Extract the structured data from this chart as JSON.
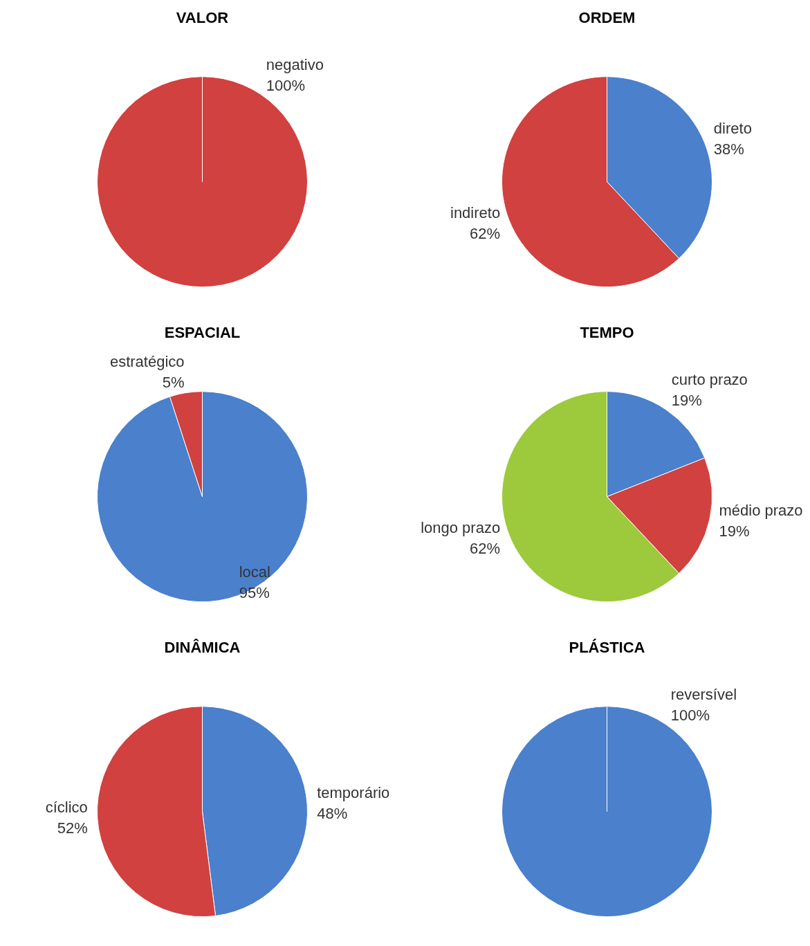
{
  "chart_data": [
    {
      "type": "pie",
      "title": "VALOR",
      "categories": [
        "negativo"
      ],
      "values": [
        100
      ],
      "value_labels": [
        "100%"
      ],
      "colors": [
        "#d0413f"
      ]
    },
    {
      "type": "pie",
      "title": "ORDEM",
      "categories": [
        "direto",
        "indireto"
      ],
      "values": [
        38,
        62
      ],
      "value_labels": [
        "38%",
        "62%"
      ],
      "colors": [
        "#4a80cc",
        "#d0413f"
      ]
    },
    {
      "type": "pie",
      "title": "ESPACIAL",
      "categories": [
        "local",
        "estratégico"
      ],
      "values": [
        95,
        5
      ],
      "value_labels": [
        "95%",
        "5%"
      ],
      "colors": [
        "#4a80cc",
        "#d0413f"
      ]
    },
    {
      "type": "pie",
      "title": "TEMPO",
      "categories": [
        "curto prazo",
        "médio prazo",
        "longo prazo"
      ],
      "values": [
        19,
        19,
        62
      ],
      "value_labels": [
        "19%",
        "19%",
        "62%"
      ],
      "colors": [
        "#4a80cc",
        "#d0413f",
        "#9dc93c"
      ]
    },
    {
      "type": "pie",
      "title": "DINÂMICA",
      "categories": [
        "temporário",
        "cíclico"
      ],
      "values": [
        48,
        52
      ],
      "value_labels": [
        "48%",
        "52%"
      ],
      "colors": [
        "#4a80cc",
        "#d0413f"
      ]
    },
    {
      "type": "pie",
      "title": "PLÁSTICA",
      "categories": [
        "reversível"
      ],
      "values": [
        100
      ],
      "value_labels": [
        "100%"
      ],
      "colors": [
        "#4a80cc"
      ]
    }
  ]
}
